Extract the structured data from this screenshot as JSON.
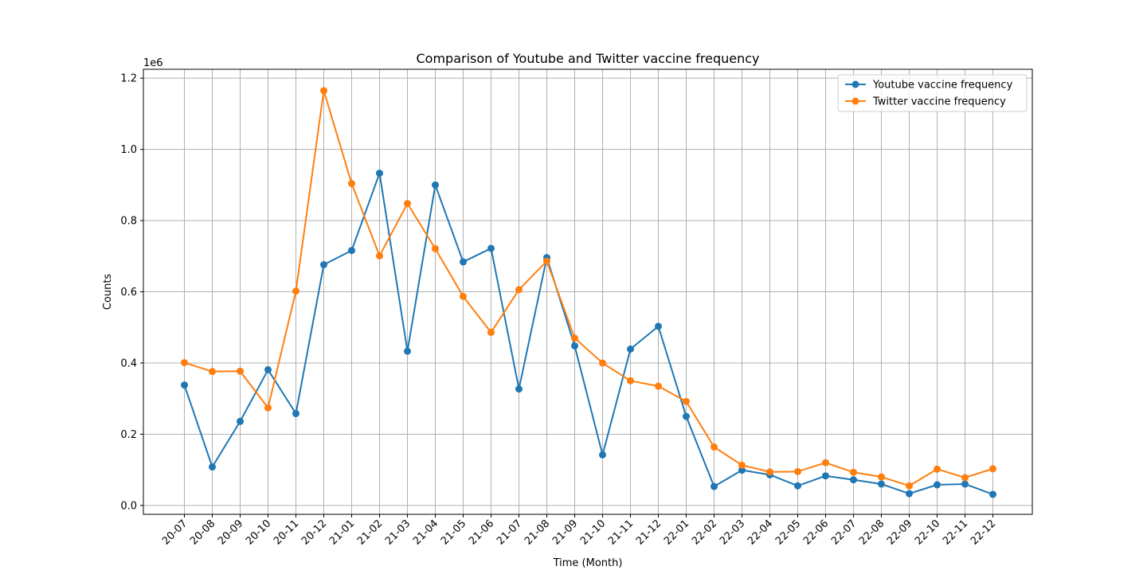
{
  "chart_data": {
    "type": "line",
    "title": "Comparison of Youtube and Twitter vaccine frequency",
    "xlabel": "Time (Month)",
    "ylabel": "Counts",
    "y_offset_label": "1e6",
    "y_scale": 1000000,
    "ylim": [
      -0.025,
      1.225
    ],
    "yticks": [
      0.0,
      0.2,
      0.4,
      0.6,
      0.8,
      1.0,
      1.2
    ],
    "ytick_labels": [
      "0.0",
      "0.2",
      "0.4",
      "0.6",
      "0.8",
      "1.0",
      "1.2"
    ],
    "grid": true,
    "legend_position": "top-right",
    "categories": [
      "20-07",
      "20-08",
      "20-09",
      "20-10",
      "20-11",
      "20-12",
      "21-01",
      "21-02",
      "21-03",
      "21-04",
      "21-05",
      "21-06",
      "21-07",
      "21-08",
      "21-09",
      "21-10",
      "21-11",
      "21-12",
      "22-01",
      "22-02",
      "22-03",
      "22-04",
      "22-05",
      "22-06",
      "22-07",
      "22-08",
      "22-09",
      "22-10",
      "22-11",
      "22-12"
    ],
    "series": [
      {
        "name": "Youtube vaccine frequency",
        "color": "#1f77b4",
        "values": [
          0.338,
          0.108,
          0.236,
          0.381,
          0.258,
          0.676,
          0.716,
          0.933,
          0.433,
          0.9,
          0.684,
          0.722,
          0.327,
          0.696,
          0.448,
          0.142,
          0.439,
          0.503,
          0.25,
          0.053,
          0.099,
          0.086,
          0.055,
          0.083,
          0.072,
          0.06,
          0.033,
          0.058,
          0.06,
          0.031
        ]
      },
      {
        "name": "Twitter vaccine frequency",
        "color": "#ff7f0e",
        "values": [
          0.401,
          0.376,
          0.377,
          0.274,
          0.602,
          1.165,
          0.904,
          0.701,
          0.848,
          0.721,
          0.587,
          0.486,
          0.606,
          0.686,
          0.47,
          0.4,
          0.35,
          0.335,
          0.292,
          0.164,
          0.113,
          0.094,
          0.095,
          0.12,
          0.093,
          0.08,
          0.055,
          0.102,
          0.078,
          0.103
        ]
      }
    ]
  }
}
